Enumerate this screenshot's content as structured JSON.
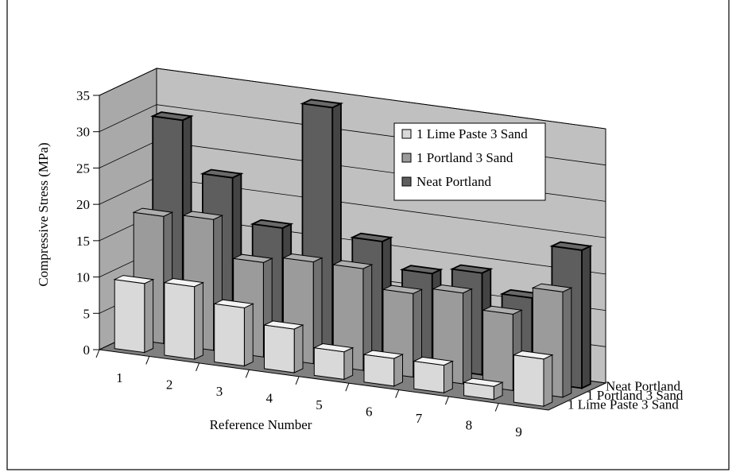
{
  "chart_data": {
    "type": "bar",
    "subtype": "3d-clustered-depth",
    "title": "",
    "xlabel": "Reference Number",
    "ylabel": "Compressive Stress (MPa)",
    "ylim": [
      0,
      35
    ],
    "yticks": [
      "0",
      "5",
      "10",
      "15",
      "20",
      "25",
      "30",
      "35"
    ],
    "grid": true,
    "legend_position": "right-center",
    "categories": [
      "1",
      "2",
      "3",
      "4",
      "5",
      "6",
      "7",
      "8",
      "9"
    ],
    "series": [
      {
        "name": "1 Lime Paste 3 Sand",
        "color": "#d9d9d9",
        "values": [
          9.5,
          10.0,
          8.0,
          6.0,
          3.8,
          3.8,
          3.8,
          1.8,
          6.5
        ]
      },
      {
        "name": "1 Portland 3 Sand",
        "color": "#9b9b9b",
        "values": [
          17.5,
          18.0,
          13.0,
          14.0,
          14.0,
          11.5,
          12.5,
          10.5,
          14.5
        ]
      },
      {
        "name": "Neat Portland",
        "color": "#5e5e5e",
        "values": [
          29.5,
          22.5,
          16.5,
          34.0,
          16.5,
          13.0,
          14.0,
          11.5,
          19.0
        ]
      }
    ]
  }
}
